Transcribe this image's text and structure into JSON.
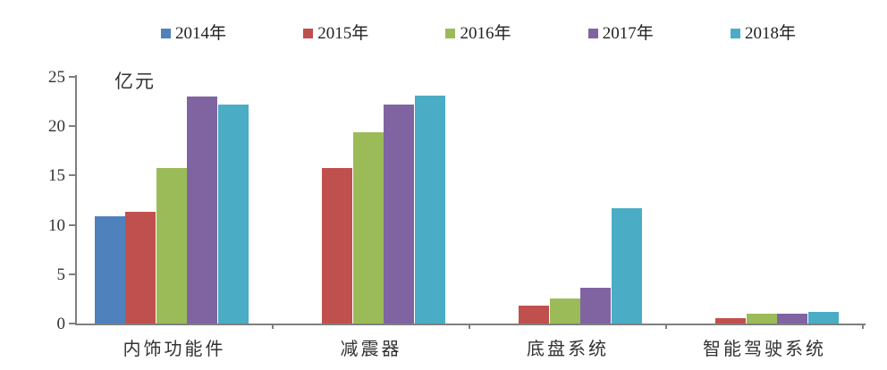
{
  "chart_data": {
    "type": "bar",
    "title": "",
    "unit_label": "亿元",
    "xlabel": "",
    "ylabel": "亿元",
    "categories": [
      "内饰功能件",
      "减震器",
      "底盘系统",
      "智能驾驶系统"
    ],
    "series": [
      {
        "name": "2014年",
        "color": "#4f81bd",
        "values": [
          10.9,
          null,
          null,
          null
        ]
      },
      {
        "name": "2015年",
        "color": "#c0504d",
        "values": [
          11.3,
          15.8,
          1.8,
          0.5
        ]
      },
      {
        "name": "2016年",
        "color": "#9bbb59",
        "values": [
          15.8,
          19.4,
          2.5,
          1.0
        ]
      },
      {
        "name": "2017年",
        "color": "#8064a2",
        "values": [
          23.0,
          22.2,
          3.6,
          1.0
        ]
      },
      {
        "name": "2018年",
        "color": "#4bacc6",
        "values": [
          22.2,
          23.1,
          11.7,
          1.2
        ]
      }
    ],
    "y_ticks": [
      0,
      5,
      10,
      15,
      20,
      25
    ],
    "ylim": [
      0,
      25
    ],
    "grid": false,
    "legend_position": "top",
    "axis_color": "#7f7f7f",
    "text_color": "#333333"
  }
}
